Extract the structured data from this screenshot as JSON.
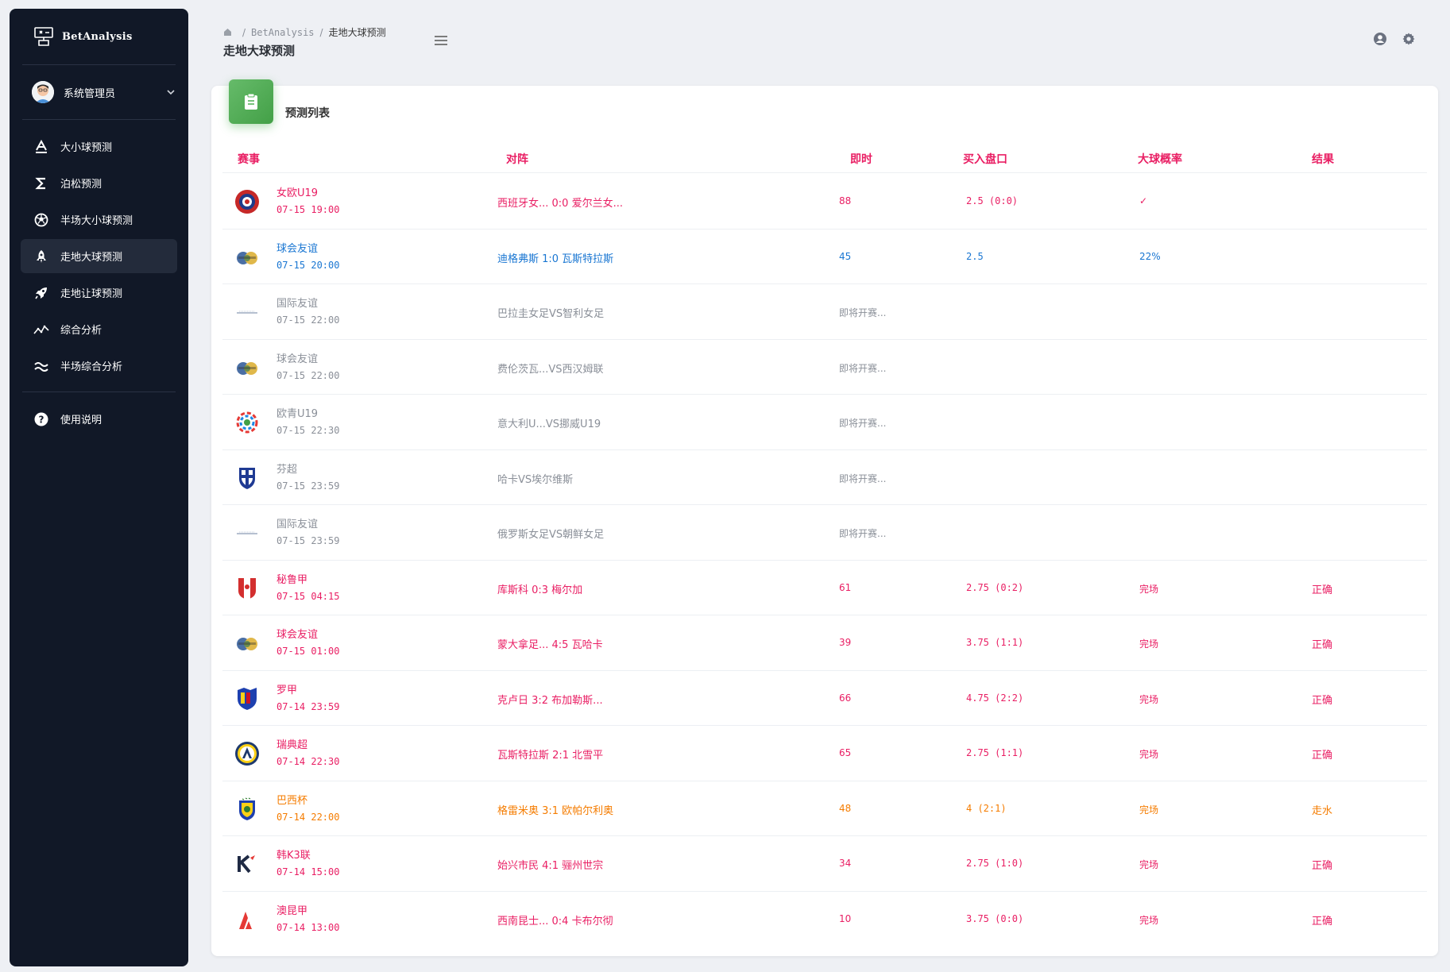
{
  "brand": {
    "name": "BetAnalysis"
  },
  "user": {
    "name": "系统管理员"
  },
  "nav": [
    {
      "label": "大小球预测",
      "icon": "letter-a-icon"
    },
    {
      "label": "泊松预测",
      "icon": "sigma-icon"
    },
    {
      "label": "半场大小球预测",
      "icon": "soccer-ball-icon"
    },
    {
      "label": "走地大球预测",
      "icon": "rocket-icon"
    },
    {
      "label": "走地让球预测",
      "icon": "rocket-launch-icon"
    },
    {
      "label": "综合分析",
      "icon": "trend-icon"
    },
    {
      "label": "半场综合分析",
      "icon": "wave-icon"
    }
  ],
  "help": {
    "label": "使用说明"
  },
  "breadcrumb": {
    "root": "BetAnalysis",
    "current": "走地大球预测"
  },
  "page_title": "走地大球预测",
  "card_title": "预测列表",
  "columns": [
    "赛事",
    "对阵",
    "即时",
    "买入盘口",
    "大球概率",
    "结果"
  ],
  "colors": {
    "red": "#e91e63",
    "blue": "#1976d2",
    "gray": "#8a8f98",
    "orange": "#f57c00",
    "sidebar": "#111827",
    "accent_green": "#4caf50"
  },
  "rows": [
    {
      "league": "女欧U19",
      "time": "07-15 19:00",
      "match": "西班牙女... 0:0 爱尔兰女...",
      "live": "88",
      "line": "2.5 (0:0)",
      "prob": "✓",
      "result": "",
      "color": "red",
      "logo": "uefa-logo"
    },
    {
      "league": "球会友谊",
      "time": "07-15 20:00",
      "match": "迪格弗斯 1:0 瓦斯特拉斯",
      "live": "45",
      "line": "2.5",
      "prob": "22%",
      "result": "",
      "color": "blue",
      "logo": "club-friendly-logo"
    },
    {
      "league": "国际友谊",
      "time": "07-15 22:00",
      "match": "巴拉圭女足VS智利女足",
      "live": "即将开赛...",
      "line": "",
      "prob": "",
      "result": "",
      "color": "gray",
      "logo": "intl-friendly-logo"
    },
    {
      "league": "球会友谊",
      "time": "07-15 22:00",
      "match": "费伦茨瓦...VS西汉姆联",
      "live": "即将开赛...",
      "line": "",
      "prob": "",
      "result": "",
      "color": "gray",
      "logo": "club-friendly-logo"
    },
    {
      "league": "欧青U19",
      "time": "07-15 22:30",
      "match": "意大利U...VS挪威U19",
      "live": "即将开赛...",
      "line": "",
      "prob": "",
      "result": "",
      "color": "gray",
      "logo": "euro-youth-logo"
    },
    {
      "league": "芬超",
      "time": "07-15 23:59",
      "match": "哈卡VS埃尔维斯",
      "live": "即将开赛...",
      "line": "",
      "prob": "",
      "result": "",
      "color": "gray",
      "logo": "finland-logo"
    },
    {
      "league": "国际友谊",
      "time": "07-15 23:59",
      "match": "俄罗斯女足VS朝鲜女足",
      "live": "即将开赛...",
      "line": "",
      "prob": "",
      "result": "",
      "color": "gray",
      "logo": "intl-friendly-logo"
    },
    {
      "league": "秘鲁甲",
      "time": "07-15 04:15",
      "match": "库斯科 0:3 梅尔加",
      "live": "61",
      "line": "2.75 (0:2)",
      "prob": "完场",
      "result": "正确",
      "color": "red",
      "logo": "peru-logo"
    },
    {
      "league": "球会友谊",
      "time": "07-15 01:00",
      "match": "蒙大拿足... 4:5 瓦哈卡",
      "live": "39",
      "line": "3.75 (1:1)",
      "prob": "完场",
      "result": "正确",
      "color": "red",
      "logo": "club-friendly-logo"
    },
    {
      "league": "罗甲",
      "time": "07-14 23:59",
      "match": "克卢日 3:2 布加勒斯...",
      "live": "66",
      "line": "4.75 (2:2)",
      "prob": "完场",
      "result": "正确",
      "color": "red",
      "logo": "romania-logo"
    },
    {
      "league": "瑞典超",
      "time": "07-14 22:30",
      "match": "瓦斯特拉斯 2:1 北雪平",
      "live": "65",
      "line": "2.75 (1:1)",
      "prob": "完场",
      "result": "正确",
      "color": "red",
      "logo": "allsvenskan-logo"
    },
    {
      "league": "巴西杯",
      "time": "07-14 22:00",
      "match": "格雷米奥 3:1 欧帕尔利奥",
      "live": "48",
      "line": "4 (2:1)",
      "prob": "完场",
      "result": "走水",
      "color": "orange",
      "logo": "brazil-logo"
    },
    {
      "league": "韩K3联",
      "time": "07-14 15:00",
      "match": "始兴市民 4:1 骊州世宗",
      "live": "34",
      "line": "2.75 (1:0)",
      "prob": "完场",
      "result": "正确",
      "color": "red",
      "logo": "k3-logo"
    },
    {
      "league": "澳昆甲",
      "time": "07-14 13:00",
      "match": "西南昆士... 0:4 卡布尔彻",
      "live": "10",
      "line": "3.75 (0:0)",
      "prob": "完场",
      "result": "正确",
      "color": "red",
      "logo": "queensland-logo"
    }
  ]
}
